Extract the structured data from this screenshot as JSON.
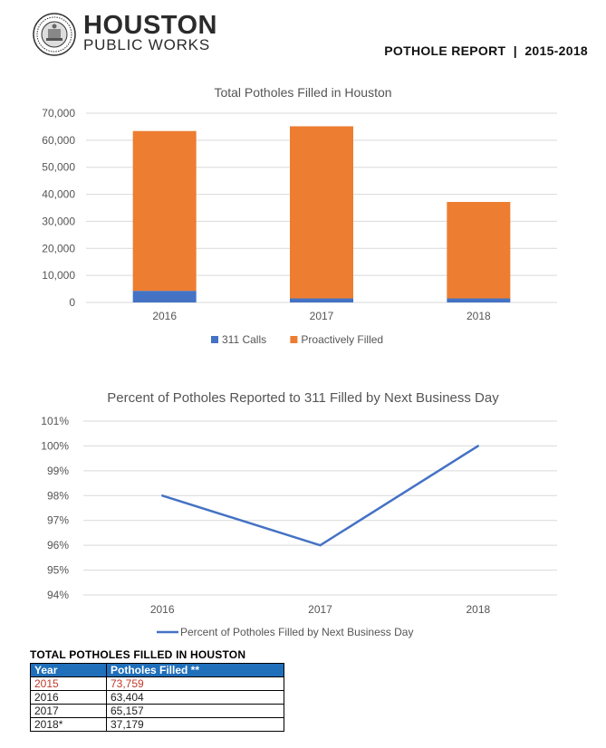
{
  "header": {
    "brand_name": "HOUSTON",
    "brand_sub": "PUBLIC WORKS",
    "report_title": "POTHOLE REPORT  |  2015-2018"
  },
  "chart_data": [
    {
      "type": "bar",
      "stacked": true,
      "title": "Total Potholes Filled in Houston",
      "categories": [
        "2016",
        "2017",
        "2018"
      ],
      "series": [
        {
          "name": "311 Calls",
          "color": "#4472c4",
          "values": [
            4300,
            1500,
            1500
          ]
        },
        {
          "name": "Proactively Filled",
          "color": "#ed7d31",
          "values": [
            59104,
            63657,
            35679
          ]
        }
      ],
      "ylim": [
        0,
        70000
      ],
      "yticks": [
        "0",
        "10,000",
        "20,000",
        "30,000",
        "40,000",
        "50,000",
        "60,000",
        "70,000"
      ],
      "grid": true,
      "legend": "bottom"
    },
    {
      "type": "line",
      "title": "Percent of Potholes Reported to 311 Filled by Next Business Day",
      "categories": [
        "2016",
        "2017",
        "2018"
      ],
      "series": [
        {
          "name": "Percent of Potholes Filled by Next Business Day",
          "color": "#4472c4",
          "values": [
            98,
            96,
            100
          ]
        }
      ],
      "ylim": [
        94,
        101
      ],
      "yticks": [
        "94%",
        "95%",
        "96%",
        "97%",
        "98%",
        "99%",
        "100%",
        "101%"
      ],
      "grid": true,
      "legend": "bottom"
    }
  ],
  "table": {
    "heading": "TOTAL POTHOLES FILLED IN HOUSTON",
    "col_year": "Year",
    "col_filled": "Potholes Filled **",
    "rows": [
      {
        "year": "2015",
        "filled": "73,759"
      },
      {
        "year": "2016",
        "filled": "63,404"
      },
      {
        "year": "2017",
        "filled": "65,157"
      },
      {
        "year": "2018*",
        "filled": "37,179"
      }
    ]
  }
}
